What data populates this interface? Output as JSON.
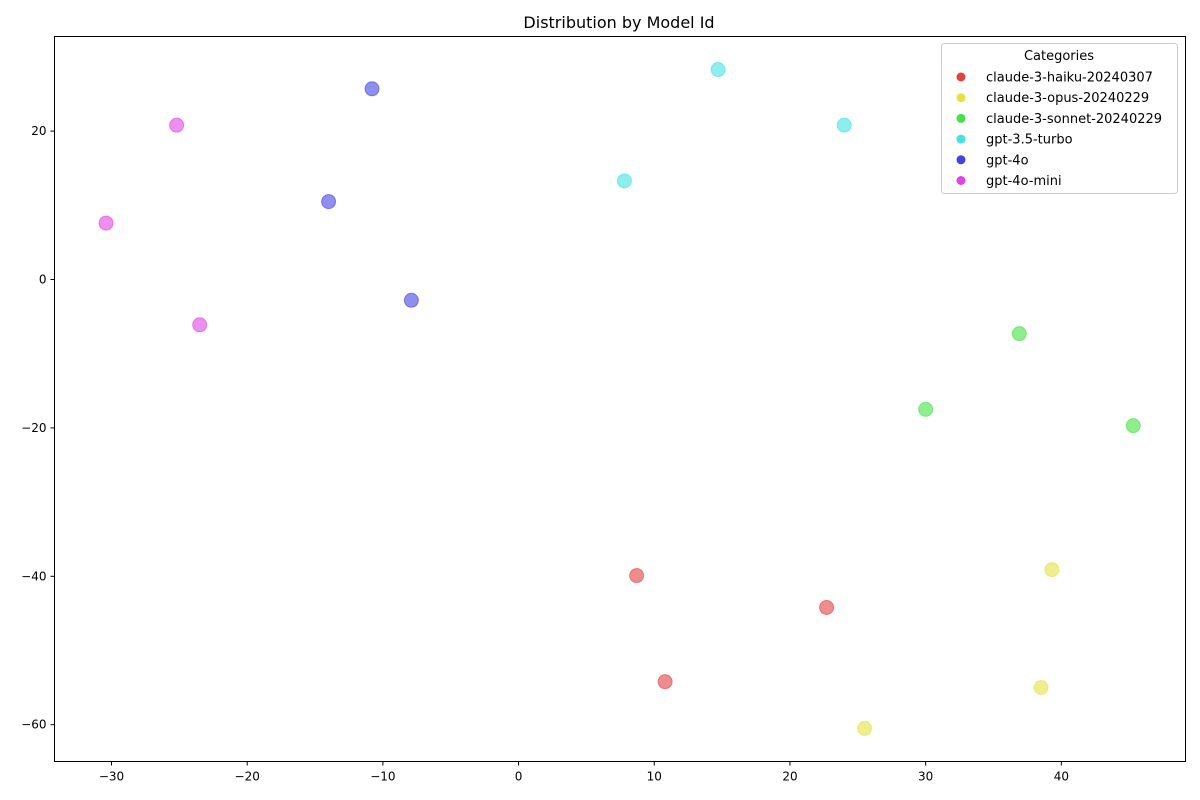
{
  "chart_data": {
    "type": "scatter",
    "title": "Distribution by Model Id",
    "xlabel": "",
    "ylabel": "",
    "xlim": [
      -34.2,
      49.15
    ],
    "ylim": [
      -64.96,
      32.75
    ],
    "xticks": [
      -30,
      -20,
      -10,
      0,
      10,
      20,
      30,
      40
    ],
    "yticks": [
      -60,
      -40,
      -20,
      0,
      20
    ],
    "grid": false,
    "legend": {
      "title": "Categories",
      "placement": "top-right"
    },
    "series": [
      {
        "name": "claude-3-haiku-20240307",
        "color": "#e3433f",
        "points": [
          [
            8.7,
            -39.9
          ],
          [
            22.7,
            -44.2
          ],
          [
            10.8,
            -54.2
          ]
        ]
      },
      {
        "name": "claude-3-opus-20240229",
        "color": "#e3e33f",
        "points": [
          [
            39.3,
            -39.1
          ],
          [
            38.5,
            -55.0
          ],
          [
            25.5,
            -60.5
          ]
        ]
      },
      {
        "name": "claude-3-sonnet-20240229",
        "color": "#43e343",
        "points": [
          [
            36.9,
            -7.3
          ],
          [
            30.0,
            -17.5
          ],
          [
            45.3,
            -19.7
          ]
        ]
      },
      {
        "name": "gpt-3.5-turbo",
        "color": "#43e3e3",
        "points": [
          [
            14.7,
            28.3
          ],
          [
            24.0,
            20.8
          ],
          [
            7.8,
            13.3
          ]
        ]
      },
      {
        "name": "gpt-4o",
        "color": "#4343e3",
        "points": [
          [
            -10.8,
            25.7
          ],
          [
            -14.0,
            10.5
          ],
          [
            -7.9,
            -2.8
          ]
        ]
      },
      {
        "name": "gpt-4o-mini",
        "color": "#e343e3",
        "points": [
          [
            -30.4,
            7.6
          ],
          [
            -25.2,
            20.8
          ],
          [
            -23.5,
            -6.1
          ]
        ]
      }
    ]
  }
}
